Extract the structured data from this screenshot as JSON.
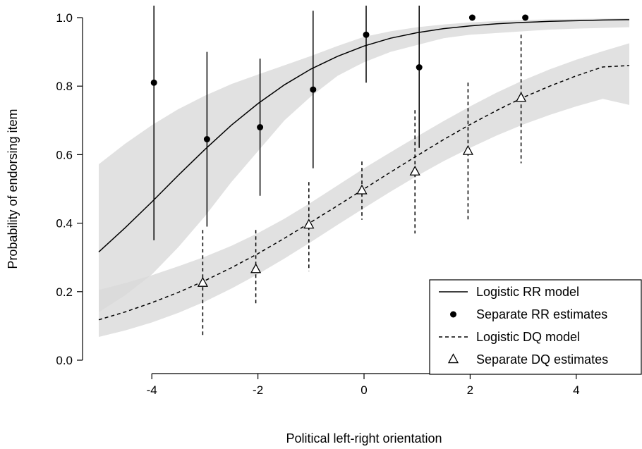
{
  "chart_data": {
    "type": "scatter",
    "xlabel": "Political left-right orientation",
    "ylabel": "Probability of endorsing item",
    "xlim": [
      -5,
      5
    ],
    "ylim": [
      0,
      1
    ],
    "x_ticks": [
      -4,
      -2,
      0,
      2,
      4
    ],
    "y_ticks": [
      0.0,
      0.2,
      0.4,
      0.6,
      0.8,
      1.0
    ],
    "x_tick_labels": [
      "-4",
      "-2",
      "0",
      "2",
      "4"
    ],
    "y_tick_labels": [
      "0.0",
      "0.2",
      "0.4",
      "0.6",
      "0.8",
      "1.0"
    ],
    "grid": false,
    "legend_position": "bottom-right",
    "series": [
      {
        "name": "Logistic RR model",
        "kind": "line",
        "linestyle": "solid",
        "x": [
          -5,
          -4.5,
          -4,
          -3.5,
          -3,
          -2.5,
          -2,
          -1.5,
          -1,
          -0.5,
          0,
          0.5,
          1,
          1.5,
          2,
          2.5,
          3,
          3.5,
          4,
          4.5,
          5
        ],
        "y": [
          0.316,
          0.387,
          0.462,
          0.54,
          0.615,
          0.686,
          0.749,
          0.804,
          0.85,
          0.887,
          0.917,
          0.94,
          0.956,
          0.968,
          0.976,
          0.982,
          0.986,
          0.989,
          0.991,
          0.993,
          0.994
        ],
        "lower": [
          0.14,
          0.19,
          0.25,
          0.33,
          0.42,
          0.52,
          0.61,
          0.7,
          0.77,
          0.83,
          0.87,
          0.9,
          0.92,
          0.94,
          0.95,
          0.955,
          0.96,
          0.965,
          0.968,
          0.97,
          0.972
        ],
        "upper": [
          0.572,
          0.632,
          0.686,
          0.733,
          0.772,
          0.806,
          0.834,
          0.861,
          0.888,
          0.917,
          0.944,
          0.96,
          0.972,
          0.98,
          0.986,
          0.99,
          0.993,
          0.995,
          0.996,
          0.997,
          0.998
        ]
      },
      {
        "name": "Separate RR estimates",
        "kind": "points",
        "marker": "filled-circle",
        "x": [
          -4,
          -3,
          -2,
          -1,
          0,
          1,
          2,
          3
        ],
        "y": [
          0.81,
          0.645,
          0.68,
          0.79,
          0.95,
          0.855,
          1.0,
          1.0
        ],
        "lower": [
          0.35,
          0.39,
          0.48,
          0.56,
          0.81,
          0.62,
          null,
          null
        ],
        "upper": [
          1.04,
          0.9,
          0.88,
          1.02,
          1.04,
          1.04,
          null,
          null
        ]
      },
      {
        "name": "Logistic DQ model",
        "kind": "line",
        "linestyle": "dashed",
        "x": [
          -5,
          -4.5,
          -4,
          -3.5,
          -3,
          -2.5,
          -2,
          -1.5,
          -1,
          -0.5,
          0,
          0.5,
          1,
          1.5,
          2,
          2.5,
          3,
          3.5,
          4,
          4.5,
          5
        ],
        "y": [
          0.118,
          0.141,
          0.168,
          0.198,
          0.232,
          0.27,
          0.311,
          0.356,
          0.403,
          0.451,
          0.5,
          0.549,
          0.597,
          0.644,
          0.688,
          0.729,
          0.767,
          0.8,
          0.83,
          0.856,
          0.86
        ],
        "lower": [
          0.068,
          0.087,
          0.11,
          0.138,
          0.171,
          0.209,
          0.251,
          0.297,
          0.345,
          0.395,
          0.444,
          0.492,
          0.538,
          0.581,
          0.62,
          0.656,
          0.688,
          0.716,
          0.741,
          0.763,
          0.745
        ],
        "upper": [
          0.205,
          0.225,
          0.248,
          0.274,
          0.302,
          0.334,
          0.371,
          0.413,
          0.46,
          0.51,
          0.56,
          0.607,
          0.653,
          0.698,
          0.741,
          0.781,
          0.817,
          0.849,
          0.877,
          0.902,
          0.925
        ]
      },
      {
        "name": "Separate DQ estimates",
        "kind": "points",
        "marker": "open-triangle",
        "x": [
          -3,
          -2,
          -1,
          0,
          1,
          2,
          3
        ],
        "y": [
          0.225,
          0.265,
          0.395,
          0.495,
          0.55,
          0.61,
          0.765
        ],
        "lower": [
          0.07,
          0.16,
          0.26,
          0.41,
          0.37,
          0.41,
          0.575
        ],
        "upper": [
          0.38,
          0.38,
          0.52,
          0.58,
          0.73,
          0.81,
          0.95
        ]
      }
    ],
    "legend": [
      {
        "label": "Logistic RR model",
        "symbol": "solid-line"
      },
      {
        "label": "Separate RR estimates",
        "symbol": "filled-circle"
      },
      {
        "label": "Logistic DQ model",
        "symbol": "dashed-line"
      },
      {
        "label": "Separate DQ estimates",
        "symbol": "open-triangle"
      }
    ],
    "colors": {
      "band": "#d9d9d9",
      "band_overlap": "#c4c4c4",
      "ink": "#000000"
    }
  }
}
